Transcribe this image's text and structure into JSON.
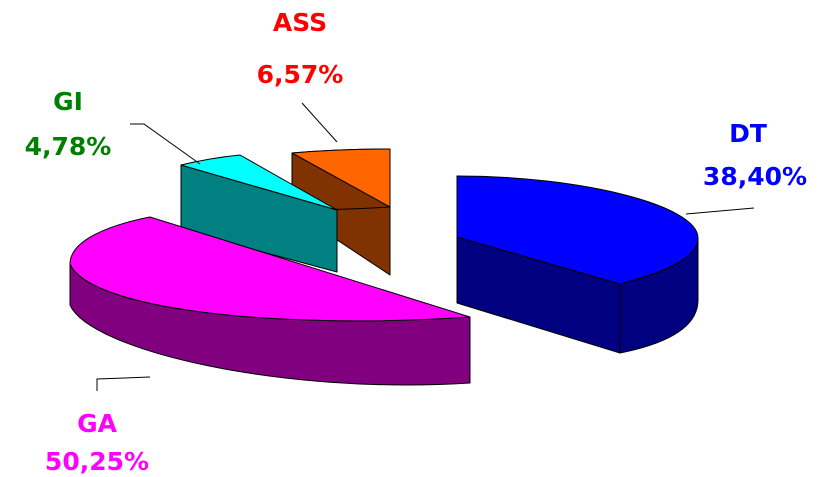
{
  "chart_data": {
    "type": "pie",
    "style": "3d-exploded",
    "slices": [
      {
        "name": "DT",
        "value": 38.4,
        "value_label": "38,40%",
        "color": "#0000ff",
        "side_color": "#000080"
      },
      {
        "name": "GA",
        "value": 50.25,
        "value_label": "50,25%",
        "color": "#ff00ff",
        "side_color": "#800080"
      },
      {
        "name": "GI",
        "value": 4.78,
        "value_label": "4,78%",
        "color": "#00ffff",
        "side_color": "#008080"
      },
      {
        "name": "ASS",
        "value": 6.57,
        "value_label": "6,57%",
        "color": "#ff6600",
        "side_color": "#803300"
      }
    ],
    "label_colors": {
      "DT": "#0000ff",
      "GA": "#ff00ff",
      "GI": "#008000",
      "ASS": "#ff0000"
    }
  }
}
